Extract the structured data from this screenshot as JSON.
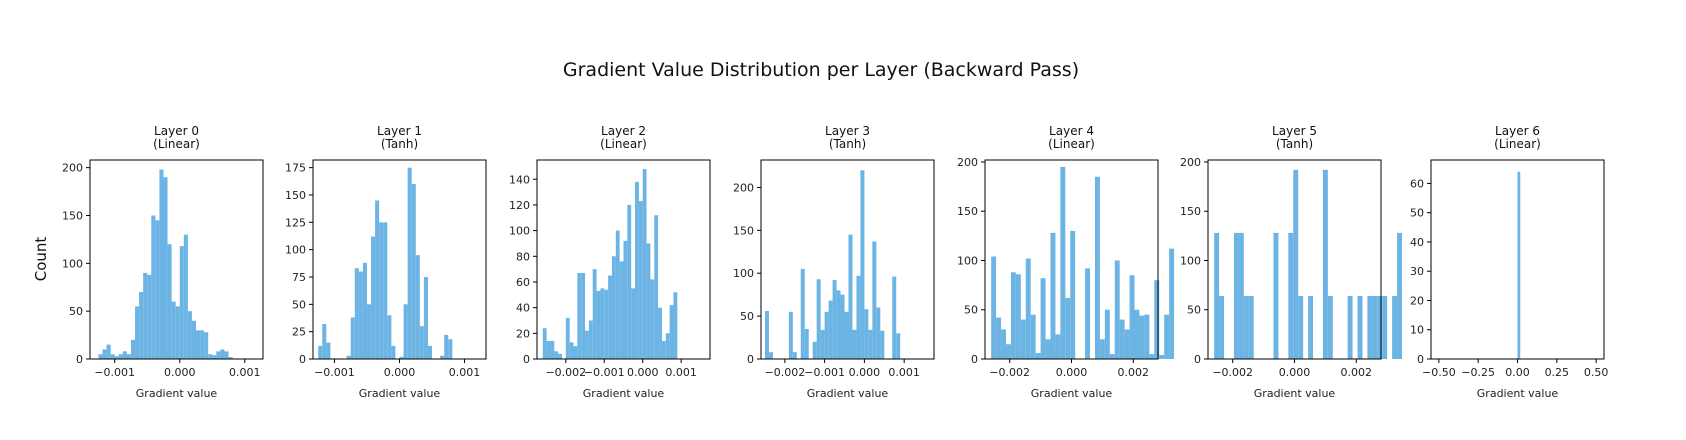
{
  "figure": {
    "title": "Gradient Value Distribution per Layer (Backward Pass)",
    "ylabel": "Count",
    "bar_color": "#6cb4e4",
    "frame_color": "#000000"
  },
  "chart_data": [
    {
      "type": "bar",
      "title": "Layer 0\n(Linear)",
      "xlabel": "Gradient value",
      "xlim": [
        -0.00138,
        0.00128
      ],
      "ylim": [
        0,
        208
      ],
      "xticks": [
        -0.001,
        0.0,
        0.001
      ],
      "xtick_labels": [
        "−0.001",
        "0.000",
        "0.001"
      ],
      "yticks": [
        0,
        50,
        100,
        150,
        200
      ],
      "ytick_labels": [
        "0",
        "50",
        "100",
        "150",
        "200"
      ],
      "bin_start": -0.00125,
      "bin_width": 6.25e-05,
      "values": [
        5,
        10,
        15,
        5,
        3,
        5,
        8,
        5,
        20,
        55,
        70,
        90,
        88,
        150,
        145,
        198,
        190,
        120,
        60,
        55,
        118,
        130,
        50,
        40,
        30,
        30,
        28,
        5,
        4,
        8,
        10,
        8,
        2
      ]
    },
    {
      "type": "bar",
      "title": "Layer 1\n(Tanh)",
      "xlabel": "Gradient value",
      "xlim": [
        -0.00133,
        0.00133
      ],
      "ylim": [
        0,
        182
      ],
      "xticks": [
        -0.001,
        0.0,
        0.001
      ],
      "xtick_labels": [
        "−0.001",
        "0.000",
        "0.001"
      ],
      "yticks": [
        0,
        25,
        50,
        75,
        100,
        125,
        150,
        175
      ],
      "ytick_labels": [
        "0",
        "25",
        "50",
        "75",
        "100",
        "125",
        "150",
        "175"
      ],
      "bin_start": -0.00125,
      "bin_width": 6.25e-05,
      "values": [
        12,
        32,
        15,
        0,
        0,
        0,
        0,
        3,
        38,
        83,
        80,
        88,
        50,
        112,
        145,
        125,
        125,
        40,
        12,
        0,
        2,
        50,
        175,
        160,
        95,
        30,
        75,
        12,
        0,
        0,
        3,
        22,
        18
      ]
    },
    {
      "type": "bar",
      "title": "Layer 2\n(Linear)",
      "xlabel": "Gradient value",
      "xlim": [
        -0.00275,
        0.00175
      ],
      "ylim": [
        0,
        155
      ],
      "xticks": [
        -0.002,
        -0.001,
        0.0,
        0.001
      ],
      "xtick_labels": [
        "−0.002",
        "−0.001",
        "0.000",
        "0.001"
      ],
      "yticks": [
        0,
        20,
        40,
        60,
        80,
        100,
        120,
        140
      ],
      "ytick_labels": [
        "0",
        "20",
        "40",
        "60",
        "80",
        "100",
        "120",
        "140"
      ],
      "bin_start": -0.0026,
      "bin_width": 0.0001,
      "values": [
        24,
        14,
        14,
        6,
        4,
        0,
        32,
        13,
        10,
        67,
        67,
        22,
        30,
        70,
        53,
        55,
        54,
        65,
        80,
        100,
        76,
        92,
        120,
        55,
        138,
        123,
        148,
        90,
        62,
        112,
        40,
        14,
        20,
        42,
        52
      ]
    },
    {
      "type": "bar",
      "title": "Layer 3\n(Tanh)",
      "xlabel": "Gradient value",
      "xlim": [
        -0.0026,
        0.00175
      ],
      "ylim": [
        0,
        232
      ],
      "xticks": [
        -0.002,
        -0.001,
        0.0,
        0.001
      ],
      "xtick_labels": [
        "−0.002",
        "−0.001",
        "0.000",
        "0.001"
      ],
      "yticks": [
        0,
        50,
        100,
        150,
        200
      ],
      "ytick_labels": [
        "0",
        "50",
        "100",
        "150",
        "200"
      ],
      "bin_start": -0.0025,
      "bin_width": 0.0001,
      "values": [
        56,
        8,
        0,
        0,
        0,
        0,
        55,
        8,
        0,
        105,
        35,
        0,
        20,
        93,
        34,
        55,
        68,
        92,
        80,
        75,
        55,
        145,
        34,
        97,
        220,
        58,
        34,
        137,
        60,
        33,
        0,
        0,
        96,
        30,
        0
      ]
    },
    {
      "type": "bar",
      "title": "Layer 4\n(Linear)",
      "xlabel": "Gradient value",
      "xlim": [
        -0.0028,
        0.0028
      ],
      "ylim": [
        0,
        202
      ],
      "xticks": [
        -0.002,
        0.0,
        0.002
      ],
      "xtick_labels": [
        "−0.002",
        "0.000",
        "0.002"
      ],
      "yticks": [
        0,
        50,
        100,
        150,
        200
      ],
      "ytick_labels": [
        "0",
        "50",
        "100",
        "150",
        "200"
      ],
      "bin_start": -0.0026,
      "bin_width": 0.00016,
      "values": [
        104,
        42,
        30,
        15,
        88,
        86,
        40,
        102,
        45,
        6,
        82,
        20,
        128,
        25,
        195,
        62,
        130,
        0,
        0,
        92,
        0,
        185,
        20,
        50,
        5,
        100,
        40,
        30,
        85,
        50,
        44,
        45,
        5,
        80,
        4,
        45,
        112
      ]
    },
    {
      "type": "bar",
      "title": "Layer 5\n(Tanh)",
      "xlabel": "Gradient value",
      "xlim": [
        -0.0028,
        0.0028
      ],
      "ylim": [
        0,
        202
      ],
      "xticks": [
        -0.002,
        0.0,
        0.002
      ],
      "xtick_labels": [
        "−0.002",
        "0.000",
        "0.002"
      ],
      "yticks": [
        0,
        50,
        100,
        150,
        200
      ],
      "ytick_labels": [
        "0",
        "50",
        "100",
        "150",
        "200"
      ],
      "bin_start": -0.0026,
      "bin_width": 0.00016,
      "values": [
        128,
        64,
        0,
        0,
        128,
        128,
        64,
        64,
        0,
        0,
        0,
        0,
        128,
        0,
        0,
        128,
        192,
        64,
        0,
        64,
        0,
        0,
        192,
        64,
        0,
        0,
        0,
        64,
        0,
        64,
        0,
        64,
        64,
        64,
        64,
        0,
        64,
        128
      ]
    },
    {
      "type": "bar",
      "title": "Layer 6\n(Linear)",
      "xlabel": "Gradient value",
      "xlim": [
        -0.55,
        0.55
      ],
      "ylim": [
        0,
        68
      ],
      "xticks": [
        -0.5,
        -0.25,
        0.0,
        0.25,
        0.5
      ],
      "xtick_labels": [
        "−0.50",
        "−0.25",
        "0.00",
        "0.25",
        "0.50"
      ],
      "yticks": [
        0,
        10,
        20,
        30,
        40,
        50,
        60
      ],
      "ytick_labels": [
        "0",
        "10",
        "20",
        "30",
        "40",
        "50",
        "60"
      ],
      "bin_start": 0.0,
      "bin_width": 0.0175,
      "values": [
        64
      ]
    }
  ]
}
